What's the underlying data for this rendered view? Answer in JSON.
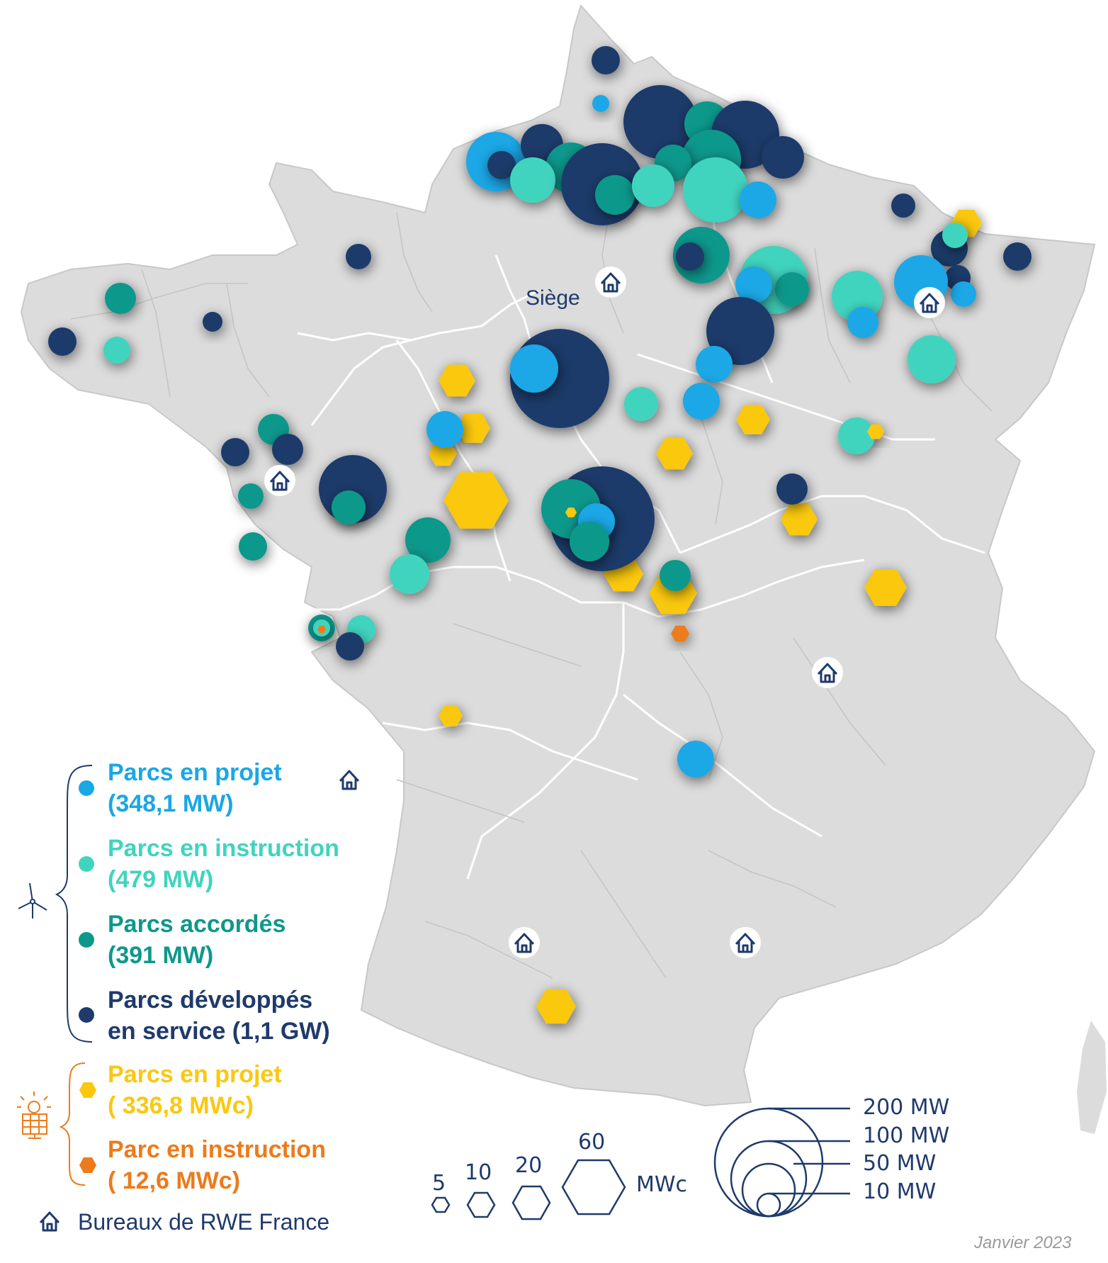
{
  "colors": {
    "projet": "#1aa7e6",
    "instruction": "#40d4bf",
    "accordes": "#0e988c",
    "service": "#1f3a6b",
    "solar_projet": "#fac80f",
    "solar_instruction": "#ec7b1b",
    "land": "#dcdcdc",
    "border": "#ffffff"
  },
  "siege_label": "Siège",
  "legend": {
    "wind_icon": "wind-turbine-icon",
    "solar_icon": "solar-panel-icon",
    "wind": [
      {
        "key": "projet",
        "line1": "Parcs en projet",
        "line2": "(348,1 MW)"
      },
      {
        "key": "instruction",
        "line1": "Parcs en instruction",
        "line2": "(479 MW)"
      },
      {
        "key": "accordes",
        "line1": "Parcs accordés",
        "line2": "(391 MW)"
      },
      {
        "key": "service",
        "line1": "Parcs développés",
        "line2": "en service (1,1 GW)"
      }
    ],
    "solar": [
      {
        "key": "solar_projet",
        "line1": "Parcs en projet",
        "line2": "( 336,8 MWc)"
      },
      {
        "key": "solar_instruction",
        "line1": "Parc en instruction",
        "line2": "( 12,6 MWc)"
      }
    ],
    "offices": "Bureaux de RWE France"
  },
  "hex_scale": {
    "values": [
      "5",
      "10",
      "20",
      "60"
    ],
    "unit": "MWc"
  },
  "circle_scale": [
    "200 MW",
    "100 MW",
    "50 MW",
    "10 MW"
  ],
  "date": "Janvier 2023"
}
